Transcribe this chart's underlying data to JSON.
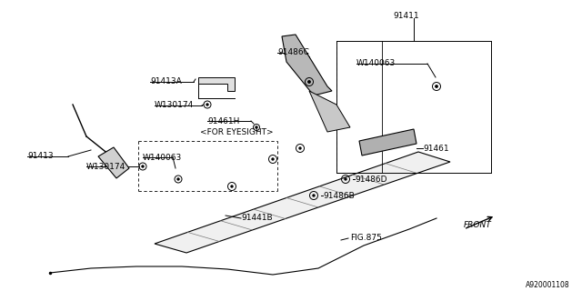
{
  "bg_color": "#ffffff",
  "line_color": "#000000",
  "diagram_id": "A920001108",
  "front_label": "FRONT",
  "fig_label": "FIG.875",
  "fs": 6.5
}
